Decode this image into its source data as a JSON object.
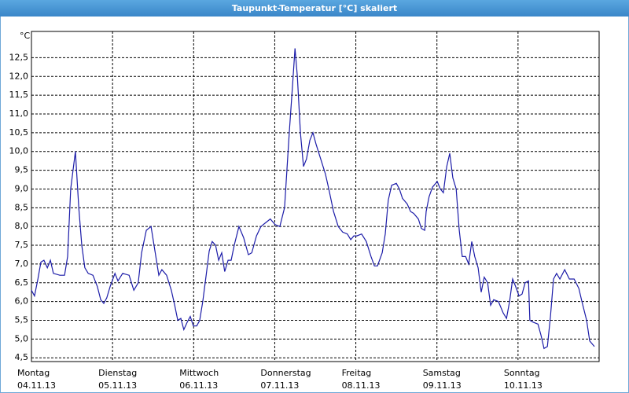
{
  "chart_data": {
    "type": "line",
    "title": "Taupunkt-Temperatur [°C] skaliert",
    "y_unit": "°C",
    "color": "#1c1ca8",
    "xlim": [
      0,
      168
    ],
    "ylim": [
      4.4,
      13.2
    ],
    "xticks": [
      {
        "value": 0,
        "label": "Montag"
      },
      {
        "value": 24,
        "label": "Dienstag"
      },
      {
        "value": 48,
        "label": "Mittwoch"
      },
      {
        "value": 72,
        "label": "Donnerstag"
      },
      {
        "value": 96,
        "label": "Freitag"
      },
      {
        "value": 120,
        "label": "Samstag"
      },
      {
        "value": 144,
        "label": "Sonntag"
      }
    ],
    "xtick_dates": [
      "04.11.13",
      "05.11.13",
      "06.11.13",
      "07.11.13",
      "08.11.13",
      "09.11.13",
      "10.11.13"
    ],
    "yticks": [
      {
        "value": 4.5,
        "label": "4,5"
      },
      {
        "value": 5,
        "label": "5,0"
      },
      {
        "value": 5.5,
        "label": "5,5"
      },
      {
        "value": 6,
        "label": "6,0"
      },
      {
        "value": 6.5,
        "label": "6,5"
      },
      {
        "value": 7,
        "label": "7,0"
      },
      {
        "value": 7.5,
        "label": "7,5"
      },
      {
        "value": 8,
        "label": "8,0"
      },
      {
        "value": 8.5,
        "label": "8,5"
      },
      {
        "value": 9,
        "label": "9,0"
      },
      {
        "value": 9.5,
        "label": "9,5"
      },
      {
        "value": 10,
        "label": "10,0"
      },
      {
        "value": 10.5,
        "label": "10,5"
      },
      {
        "value": 11,
        "label": "11,0"
      },
      {
        "value": 11.5,
        "label": "11,5"
      },
      {
        "value": 12,
        "label": "12,0"
      },
      {
        "value": 12.5,
        "label": "12,5"
      }
    ],
    "grid": true,
    "x": [
      0,
      0.9,
      1.9,
      2.8,
      3.7,
      4.7,
      5.6,
      6.5,
      8.4,
      9.8,
      10.7,
      11.6,
      13.0,
      14.0,
      14.9,
      15.8,
      16.8,
      18.2,
      19.5,
      20.5,
      21.4,
      22.3,
      23.3,
      24.7,
      25.6,
      27.0,
      28.9,
      30.3,
      31.6,
      32.6,
      34.0,
      35.4,
      36.8,
      37.7,
      38.6,
      40.0,
      41.4,
      42.4,
      43.3,
      44.2,
      45.1,
      46.1,
      47.0,
      47.9,
      48.9,
      49.8,
      50.7,
      51.7,
      52.6,
      53.5,
      54.5,
      55.4,
      56.3,
      57.2,
      58.2,
      59.1,
      60.0,
      61.4,
      62.8,
      64.2,
      65.2,
      66.6,
      67.9,
      69.3,
      70.7,
      72.1,
      73.5,
      74.9,
      76.3,
      77.3,
      78.0,
      78.7,
      79.6,
      80.5,
      81.4,
      82.4,
      83.3,
      84.2,
      85.6,
      87.0,
      88.0,
      89.4,
      90.8,
      92.1,
      93.5,
      94.5,
      95.4,
      96.3,
      97.7,
      99.1,
      100.5,
      101.5,
      102.4,
      103.8,
      104.7,
      105.6,
      106.6,
      108.0,
      108.9,
      109.8,
      111.2,
      112.2,
      113.1,
      114.5,
      115.4,
      116.4,
      116.8,
      117.7,
      118.7,
      120.1,
      121.0,
      121.9,
      122.9,
      123.8,
      124.7,
      125.7,
      126.6,
      127.5,
      128.5,
      129.4,
      130.3,
      131.2,
      132.2,
      133.1,
      134.0,
      135.0,
      135.9,
      136.8,
      138.2,
      139.6,
      140.6,
      141.5,
      142.4,
      143.3,
      144.3,
      145.2,
      146.1,
      147.1,
      147.5,
      148.5,
      149.9,
      150.8,
      151.7,
      152.7,
      153.6,
      154.5,
      155.4,
      156.4,
      157.8,
      159.2,
      160.6,
      162.0,
      162.9,
      164.3,
      165.2,
      166.6
    ],
    "values": [
      6.3,
      6.15,
      6.6,
      7.05,
      7.1,
      6.9,
      7.1,
      6.75,
      6.7,
      6.7,
      7.2,
      9.0,
      10.0,
      8.5,
      7.5,
      6.9,
      6.75,
      6.7,
      6.4,
      6.05,
      5.95,
      6.1,
      6.4,
      6.75,
      6.55,
      6.75,
      6.7,
      6.3,
      6.5,
      7.3,
      7.9,
      8.0,
      7.2,
      6.7,
      6.85,
      6.7,
      6.3,
      5.9,
      5.5,
      5.55,
      5.25,
      5.45,
      5.6,
      5.35,
      5.35,
      5.5,
      6.0,
      6.7,
      7.35,
      7.6,
      7.5,
      7.1,
      7.3,
      6.8,
      7.1,
      7.1,
      7.5,
      8.0,
      7.7,
      7.25,
      7.3,
      7.75,
      8.0,
      8.1,
      8.2,
      8.05,
      8.0,
      8.5,
      10.5,
      11.8,
      12.75,
      12.0,
      10.5,
      9.6,
      9.8,
      10.3,
      10.5,
      10.2,
      9.8,
      9.4,
      9.0,
      8.4,
      8.0,
      7.85,
      7.8,
      7.65,
      7.75,
      7.75,
      7.8,
      7.6,
      7.2,
      6.95,
      6.95,
      7.3,
      7.8,
      8.7,
      9.1,
      9.15,
      9.0,
      8.75,
      8.6,
      8.4,
      8.35,
      8.2,
      7.95,
      7.9,
      8.4,
      8.8,
      9.05,
      9.2,
      9.0,
      8.9,
      9.6,
      9.95,
      9.3,
      9.0,
      7.9,
      7.2,
      7.2,
      7.0,
      7.6,
      7.2,
      6.9,
      6.25,
      6.65,
      6.5,
      5.9,
      6.05,
      6.0,
      5.7,
      5.55,
      6.0,
      6.6,
      6.4,
      6.15,
      6.2,
      6.5,
      6.55,
      5.5,
      5.45,
      5.4,
      5.1,
      4.75,
      4.8,
      5.6,
      6.6,
      6.75,
      6.6,
      6.85,
      6.6,
      6.6,
      6.35,
      6.0,
      5.5,
      4.95,
      4.8
    ]
  }
}
